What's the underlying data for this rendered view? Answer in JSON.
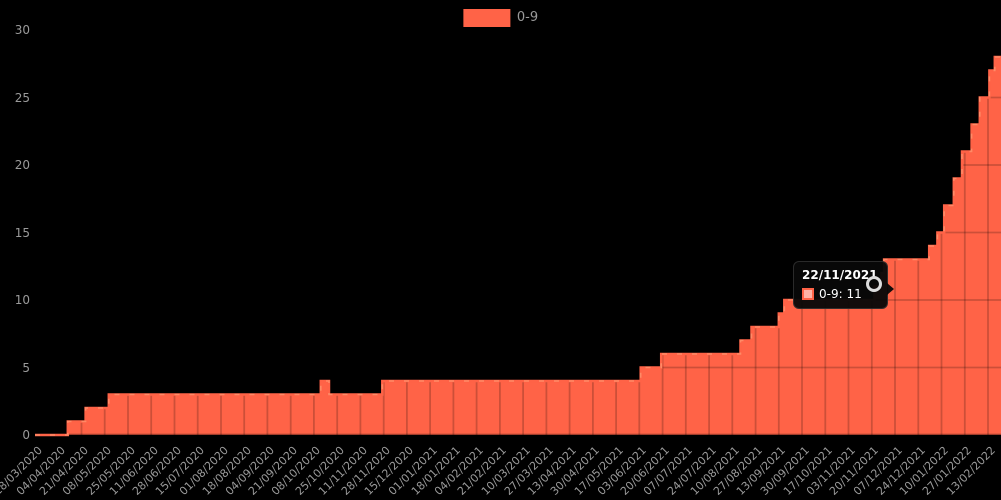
{
  "page": {
    "background": "#000000"
  },
  "legend": {
    "label": "0-9",
    "swatch_color": "#FF6347"
  },
  "y_axis": {
    "ticks": [
      0,
      5,
      10,
      15,
      20,
      25,
      30
    ],
    "color": "#9a9a9a"
  },
  "x_axis": {
    "color": "#9a9a9a",
    "labels": [
      "18/03/2020",
      "04/04/2020",
      "21/04/2020",
      "08/05/2020",
      "25/05/2020",
      "11/06/2020",
      "28/06/2020",
      "15/07/2020",
      "01/08/2020",
      "18/08/2020",
      "04/09/2020",
      "21/09/2020",
      "08/10/2020",
      "25/10/2020",
      "11/11/2020",
      "28/11/2020",
      "15/12/2020",
      "01/01/2021",
      "18/01/2021",
      "04/02/2021",
      "21/02/2021",
      "10/03/2021",
      "27/03/2021",
      "13/04/2021",
      "30/04/2021",
      "17/05/2021",
      "03/06/2021",
      "20/06/2021",
      "07/07/2021",
      "24/07/2021",
      "10/08/2021",
      "27/08/2021",
      "13/09/2021",
      "30/09/2021",
      "17/10/2021",
      "03/11/2021",
      "20/11/2021",
      "07/12/2021",
      "24/12/2021",
      "10/01/2022",
      "27/01/2022",
      "13/02/2022"
    ]
  },
  "tooltip": {
    "title": "22/11/2021",
    "series": "0-9",
    "value": 11,
    "row_text": "0-9: 11"
  },
  "chart_data": {
    "type": "area",
    "step": true,
    "title": "",
    "xlabel": "",
    "ylabel": "",
    "ylim": [
      0,
      30
    ],
    "grid": true,
    "legend_position": "top",
    "series_color": "#FF6347",
    "x_start": "18/03/2020",
    "x_end_visible": "13/02/2022",
    "highlighted_point": {
      "date": "22/11/2021",
      "value": 11
    },
    "series": [
      {
        "name": "0-9",
        "color": "#FF6347",
        "step_points": [
          {
            "d": "18/03/2020",
            "v": 0
          },
          {
            "d": "11/04/2020",
            "v": 1
          },
          {
            "d": "24/04/2020",
            "v": 2
          },
          {
            "d": "11/05/2020",
            "v": 3
          },
          {
            "d": "13/10/2020",
            "v": 4
          },
          {
            "d": "19/10/2020",
            "v": 3
          },
          {
            "d": "27/11/2020",
            "v": 4
          },
          {
            "d": "04/06/2021",
            "v": 5
          },
          {
            "d": "19/06/2021",
            "v": 6
          },
          {
            "d": "16/08/2021",
            "v": 7
          },
          {
            "d": "24/08/2021",
            "v": 8
          },
          {
            "d": "13/09/2021",
            "v": 9
          },
          {
            "d": "17/09/2021",
            "v": 10
          },
          {
            "d": "22/11/2021",
            "v": 11
          },
          {
            "d": "27/11/2021",
            "v": 12
          },
          {
            "d": "29/11/2021",
            "v": 13
          },
          {
            "d": "01/01/2022",
            "v": 14
          },
          {
            "d": "07/01/2022",
            "v": 15
          },
          {
            "d": "12/01/2022",
            "v": 17
          },
          {
            "d": "19/01/2022",
            "v": 19
          },
          {
            "d": "25/01/2022",
            "v": 21
          },
          {
            "d": "01/02/2022",
            "v": 23
          },
          {
            "d": "07/02/2022",
            "v": 25
          },
          {
            "d": "14/02/2022",
            "v": 27
          },
          {
            "d": "18/02/2022",
            "v": 28
          }
        ]
      }
    ]
  }
}
